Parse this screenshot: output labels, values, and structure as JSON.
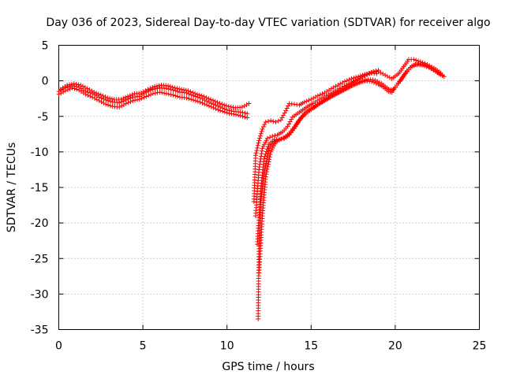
{
  "chart_data": {
    "type": "scatter",
    "title": "Day 036 of 2023, Sidereal Day-to-day VTEC variation (SDTVAR) for receiver algo",
    "xlabel": "GPS time / hours",
    "ylabel": "SDTVAR / TECUs",
    "xlim": [
      0,
      25
    ],
    "ylim": [
      -35,
      5
    ],
    "xticks": [
      0,
      5,
      10,
      15,
      20,
      25
    ],
    "yticks": [
      5,
      0,
      -5,
      -10,
      -15,
      -20,
      -25,
      -30,
      -35
    ],
    "grid": true,
    "marker": "+",
    "series": [
      {
        "name": "SDTVAR",
        "color": "#ff0000",
        "tracks": [
          [
            [
              0.0,
              -1.5
            ],
            [
              0.4,
              -1.0
            ],
            [
              0.8,
              -0.7
            ],
            [
              1.2,
              -0.9
            ],
            [
              1.6,
              -1.5
            ],
            [
              2.0,
              -1.8
            ],
            [
              2.4,
              -2.3
            ],
            [
              2.8,
              -2.7
            ],
            [
              3.2,
              -3.0
            ],
            [
              3.6,
              -3.1
            ],
            [
              4.0,
              -2.7
            ],
            [
              4.4,
              -2.3
            ],
            [
              4.8,
              -2.2
            ],
            [
              5.2,
              -1.6
            ],
            [
              5.6,
              -1.2
            ],
            [
              6.0,
              -1.0
            ],
            [
              6.4,
              -1.1
            ],
            [
              6.8,
              -1.3
            ],
            [
              7.2,
              -1.6
            ],
            [
              7.6,
              -1.7
            ],
            [
              8.0,
              -2.1
            ],
            [
              8.4,
              -2.4
            ],
            [
              8.8,
              -2.9
            ],
            [
              9.2,
              -3.3
            ],
            [
              9.6,
              -3.7
            ],
            [
              10.0,
              -4.1
            ],
            [
              10.4,
              -4.3
            ],
            [
              10.8,
              -4.4
            ],
            [
              11.2,
              -4.6
            ]
          ],
          [
            [
              0.0,
              -1.9
            ],
            [
              0.4,
              -1.4
            ],
            [
              0.8,
              -1.0
            ],
            [
              1.2,
              -1.3
            ],
            [
              1.6,
              -1.9
            ],
            [
              2.0,
              -2.3
            ],
            [
              2.4,
              -2.8
            ],
            [
              2.8,
              -3.3
            ],
            [
              3.2,
              -3.6
            ],
            [
              3.6,
              -3.7
            ],
            [
              4.0,
              -3.2
            ],
            [
              4.4,
              -2.8
            ],
            [
              4.8,
              -2.6
            ],
            [
              5.2,
              -2.2
            ],
            [
              5.6,
              -1.8
            ],
            [
              6.0,
              -1.6
            ],
            [
              6.4,
              -1.8
            ],
            [
              6.8,
              -2.0
            ],
            [
              7.2,
              -2.3
            ],
            [
              7.6,
              -2.4
            ],
            [
              8.0,
              -2.7
            ],
            [
              8.4,
              -3.0
            ],
            [
              8.8,
              -3.4
            ],
            [
              9.2,
              -3.8
            ],
            [
              9.6,
              -4.2
            ],
            [
              10.0,
              -4.5
            ],
            [
              10.4,
              -4.7
            ],
            [
              10.8,
              -4.9
            ],
            [
              11.2,
              -5.2
            ]
          ],
          [
            [
              0.1,
              -1.2
            ],
            [
              0.5,
              -0.6
            ],
            [
              0.9,
              -0.4
            ],
            [
              1.3,
              -0.6
            ],
            [
              1.7,
              -1.1
            ],
            [
              2.1,
              -1.6
            ],
            [
              2.5,
              -2.0
            ],
            [
              2.9,
              -2.4
            ],
            [
              3.3,
              -2.6
            ],
            [
              3.7,
              -2.6
            ],
            [
              4.1,
              -2.2
            ],
            [
              4.5,
              -1.8
            ],
            [
              4.9,
              -1.7
            ],
            [
              5.3,
              -1.2
            ],
            [
              5.7,
              -0.8
            ],
            [
              6.1,
              -0.6
            ],
            [
              6.5,
              -0.7
            ],
            [
              6.9,
              -1.0
            ],
            [
              7.3,
              -1.2
            ],
            [
              7.7,
              -1.4
            ],
            [
              8.1,
              -1.8
            ],
            [
              8.5,
              -2.1
            ],
            [
              8.9,
              -2.5
            ],
            [
              9.3,
              -2.9
            ],
            [
              9.7,
              -3.3
            ],
            [
              10.1,
              -3.6
            ],
            [
              10.5,
              -3.8
            ],
            [
              10.9,
              -3.7
            ],
            [
              11.3,
              -3.2
            ]
          ],
          [
            [
              11.6,
              -17.0
            ],
            [
              11.7,
              -10.5
            ],
            [
              11.9,
              -8.4
            ],
            [
              12.1,
              -6.8
            ],
            [
              12.3,
              -5.8
            ],
            [
              12.6,
              -5.6
            ],
            [
              12.9,
              -5.8
            ],
            [
              13.2,
              -5.5
            ],
            [
              13.5,
              -4.2
            ],
            [
              13.7,
              -3.2
            ],
            [
              14.0,
              -3.3
            ],
            [
              14.3,
              -3.4
            ],
            [
              14.6,
              -3.0
            ],
            [
              15.0,
              -2.6
            ],
            [
              15.4,
              -2.1
            ],
            [
              15.8,
              -1.7
            ],
            [
              16.2,
              -1.1
            ],
            [
              16.6,
              -0.6
            ],
            [
              17.0,
              -0.1
            ],
            [
              17.4,
              0.3
            ],
            [
              17.8,
              0.6
            ],
            [
              18.2,
              0.9
            ],
            [
              18.6,
              1.1
            ],
            [
              18.9,
              1.0
            ]
          ],
          [
            [
              11.7,
              -19.0
            ],
            [
              11.9,
              -12.5
            ],
            [
              12.1,
              -9.5
            ],
            [
              12.4,
              -8.1
            ],
            [
              12.7,
              -7.8
            ],
            [
              13.0,
              -7.6
            ],
            [
              13.3,
              -7.2
            ],
            [
              13.6,
              -6.4
            ],
            [
              13.9,
              -5.1
            ],
            [
              14.2,
              -4.6
            ],
            [
              14.5,
              -4.1
            ],
            [
              14.8,
              -3.6
            ],
            [
              15.1,
              -3.2
            ],
            [
              15.5,
              -2.6
            ],
            [
              15.9,
              -2.1
            ],
            [
              16.3,
              -1.6
            ],
            [
              16.7,
              -1.1
            ],
            [
              17.1,
              -0.6
            ],
            [
              17.5,
              -0.1
            ],
            [
              17.9,
              0.4
            ],
            [
              18.3,
              0.9
            ],
            [
              18.7,
              1.3
            ],
            [
              19.0,
              1.5
            ]
          ],
          [
            [
              11.8,
              -23.0
            ],
            [
              12.0,
              -15.5
            ],
            [
              12.2,
              -11.0
            ],
            [
              12.5,
              -8.9
            ],
            [
              12.8,
              -8.3
            ],
            [
              13.1,
              -8.2
            ],
            [
              13.4,
              -8.1
            ],
            [
              13.7,
              -7.6
            ],
            [
              14.0,
              -6.7
            ],
            [
              14.3,
              -5.6
            ],
            [
              14.6,
              -4.6
            ],
            [
              14.9,
              -4.1
            ],
            [
              15.2,
              -3.7
            ],
            [
              15.6,
              -3.0
            ],
            [
              16.0,
              -2.5
            ],
            [
              16.4,
              -2.0
            ],
            [
              16.8,
              -1.5
            ],
            [
              17.2,
              -1.0
            ],
            [
              17.6,
              -0.5
            ],
            [
              18.0,
              -0.1
            ],
            [
              18.4,
              0.2
            ],
            [
              18.8,
              0.1
            ],
            [
              19.2,
              -0.4
            ],
            [
              19.5,
              -1.0
            ],
            [
              19.7,
              -1.3
            ],
            [
              19.9,
              -1.2
            ],
            [
              20.1,
              -0.6
            ],
            [
              20.4,
              0.4
            ],
            [
              20.7,
              1.4
            ],
            [
              21.0,
              2.1
            ],
            [
              21.4,
              2.4
            ],
            [
              21.8,
              2.2
            ],
            [
              22.2,
              1.7
            ],
            [
              22.6,
              1.0
            ],
            [
              22.9,
              0.6
            ]
          ],
          [
            [
              11.9,
              -27.0
            ],
            [
              12.1,
              -19.0
            ],
            [
              12.3,
              -13.5
            ],
            [
              12.6,
              -10.0
            ],
            [
              12.9,
              -8.6
            ],
            [
              13.2,
              -8.2
            ],
            [
              13.5,
              -7.9
            ],
            [
              13.8,
              -7.3
            ],
            [
              14.1,
              -6.2
            ],
            [
              14.4,
              -5.2
            ],
            [
              14.7,
              -4.4
            ],
            [
              15.0,
              -3.9
            ],
            [
              15.4,
              -3.3
            ],
            [
              15.8,
              -2.8
            ],
            [
              16.2,
              -2.2
            ],
            [
              16.6,
              -1.7
            ],
            [
              17.0,
              -1.2
            ],
            [
              17.4,
              -0.7
            ],
            [
              17.8,
              -0.3
            ],
            [
              18.2,
              0.0
            ],
            [
              18.6,
              -0.1
            ],
            [
              19.0,
              -0.5
            ],
            [
              19.3,
              -0.9
            ],
            [
              19.6,
              -1.5
            ],
            [
              19.8,
              -1.6
            ],
            [
              20.0,
              -0.9
            ],
            [
              20.3,
              0.0
            ],
            [
              20.6,
              1.0
            ],
            [
              20.9,
              1.9
            ],
            [
              21.2,
              2.3
            ],
            [
              21.6,
              2.2
            ],
            [
              22.0,
              1.9
            ],
            [
              22.4,
              1.3
            ],
            [
              22.8,
              0.8
            ]
          ],
          [
            [
              11.85,
              -33.5
            ],
            [
              11.9,
              -24.0
            ],
            [
              12.0,
              -17.0
            ],
            [
              12.2,
              -13.0
            ],
            [
              12.5,
              -9.5
            ],
            [
              12.8,
              -8.5
            ],
            [
              13.1,
              -8.3
            ],
            [
              13.4,
              -8.0
            ],
            [
              13.7,
              -7.4
            ],
            [
              14.0,
              -6.5
            ],
            [
              14.3,
              -5.5
            ],
            [
              14.6,
              -4.8
            ],
            [
              15.0,
              -4.0
            ],
            [
              15.4,
              -3.4
            ],
            [
              15.8,
              -2.7
            ],
            [
              16.2,
              -2.0
            ],
            [
              16.6,
              -1.5
            ],
            [
              17.0,
              -0.9
            ],
            [
              17.4,
              -0.4
            ],
            [
              17.8,
              0.2
            ],
            [
              18.2,
              0.7
            ],
            [
              18.6,
              1.2
            ],
            [
              19.0,
              1.3
            ],
            [
              19.4,
              0.8
            ],
            [
              19.8,
              0.3
            ],
            [
              20.2,
              1.0
            ],
            [
              20.5,
              2.0
            ],
            [
              20.8,
              3.0
            ],
            [
              21.1,
              3.0
            ],
            [
              21.5,
              2.7
            ],
            [
              21.9,
              2.3
            ],
            [
              22.3,
              1.8
            ],
            [
              22.7,
              1.1
            ]
          ]
        ]
      }
    ]
  }
}
